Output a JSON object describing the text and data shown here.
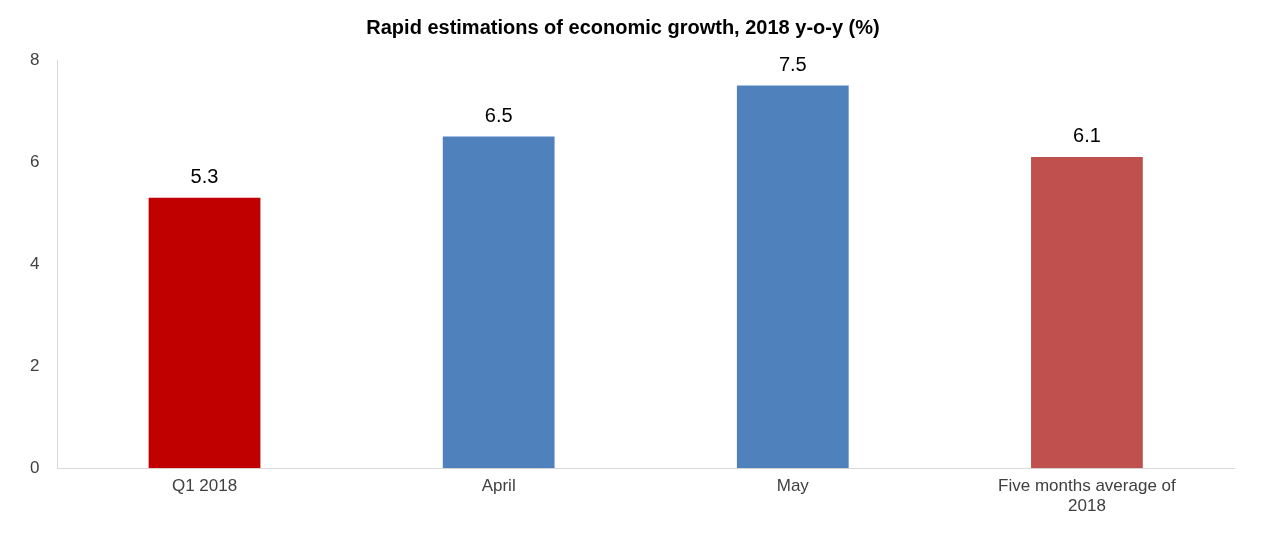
{
  "chart_data": {
    "type": "bar",
    "title": "Rapid estimations of economic growth, 2018 y-o-y (%)",
    "categories": [
      "Q1 2018",
      "April",
      "May",
      "Five months average of 2018"
    ],
    "values": [
      5.3,
      6.5,
      7.5,
      6.1
    ],
    "colors": [
      "#c00000",
      "#4f81bd",
      "#4f81bd",
      "#c0504d"
    ],
    "ylim": [
      0,
      8
    ],
    "yticks": [
      0,
      2,
      4,
      6,
      8
    ],
    "grid": false,
    "legend": false,
    "data_labels": true
  }
}
